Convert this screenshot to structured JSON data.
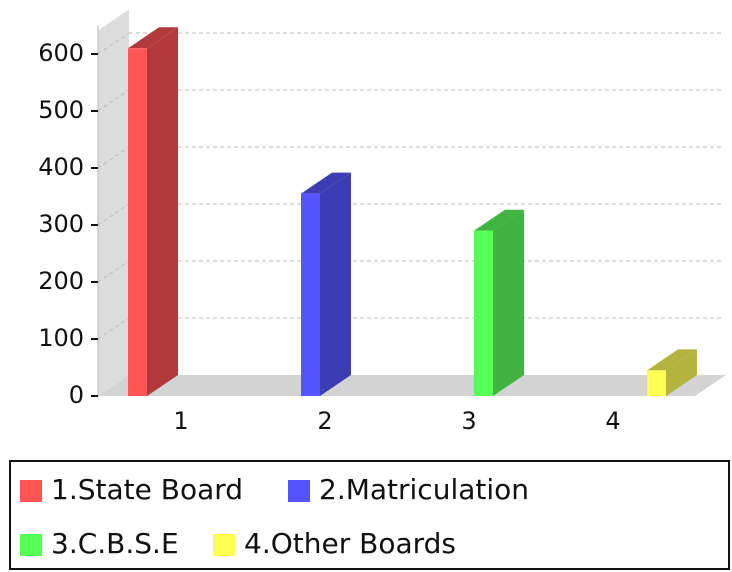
{
  "chart_data": {
    "type": "bar3d",
    "categories": [
      "1",
      "2",
      "3",
      "4"
    ],
    "values": [
      610,
      355,
      290,
      45
    ],
    "colors": [
      "#ff5555",
      "#5555ff",
      "#55ff55",
      "#ffff55"
    ],
    "side_colors": [
      "#b33a3a",
      "#3d3db3",
      "#40b340",
      "#b3b340"
    ],
    "legend": [
      "1.State Board",
      "2.Matriculation",
      "3.C.B.S.E",
      "4.Other Boards"
    ],
    "ylim": [
      0,
      650
    ],
    "yticks": [
      0,
      100,
      200,
      300,
      400,
      500,
      600
    ],
    "grid": true
  }
}
